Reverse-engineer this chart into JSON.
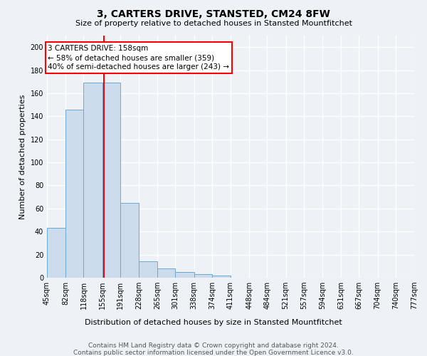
{
  "title": "3, CARTERS DRIVE, STANSTED, CM24 8FW",
  "subtitle": "Size of property relative to detached houses in Stansted Mountfitchet",
  "xlabel": "Distribution of detached houses by size in Stansted Mountfitchet",
  "ylabel": "Number of detached properties",
  "footer1": "Contains HM Land Registry data © Crown copyright and database right 2024.",
  "footer2": "Contains public sector information licensed under the Open Government Licence v3.0.",
  "bin_edges": [
    45,
    82,
    118,
    155,
    191,
    228,
    265,
    301,
    338,
    374,
    411,
    448,
    484,
    521,
    557,
    594,
    631,
    667,
    704,
    740,
    777
  ],
  "bar_heights": [
    43,
    146,
    169,
    169,
    65,
    14,
    8,
    5,
    3,
    2,
    0,
    0,
    0,
    0,
    0,
    0,
    0,
    0,
    0,
    0
  ],
  "bar_color": "#ccdcec",
  "bar_edgecolor": "#6aaad4",
  "red_line_x": 158,
  "ylim": [
    0,
    210
  ],
  "yticks": [
    0,
    20,
    40,
    60,
    80,
    100,
    120,
    140,
    160,
    180,
    200
  ],
  "annotation_line1": "3 CARTERS DRIVE: 158sqm",
  "annotation_line2": "← 58% of detached houses are smaller (359)",
  "annotation_line3": "40% of semi-detached houses are larger (243) →",
  "annotation_box_color": "white",
  "annotation_box_edgecolor": "red",
  "background_color": "#eef2f7",
  "grid_color": "#ffffff",
  "title_fontsize": 10,
  "subtitle_fontsize": 8,
  "footer_fontsize": 6.5,
  "ylabel_fontsize": 8,
  "xlabel_fontsize": 8,
  "tick_fontsize": 7,
  "annotation_fontsize": 7.5
}
